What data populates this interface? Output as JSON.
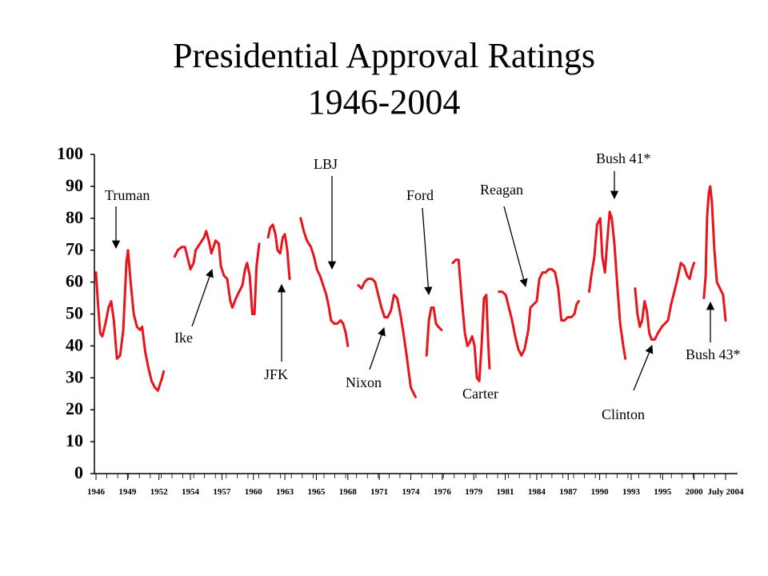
{
  "chart_data": {
    "type": "line",
    "title": "Presidential Approval Ratings",
    "subtitle": "1946-2004",
    "color": "#e8141c",
    "xlim": [
      1946,
      2004.5
    ],
    "xticks": [
      1946,
      1949,
      1952,
      1954,
      1957,
      1960,
      1963,
      1965,
      1968,
      1971,
      1974,
      1976,
      1979,
      1981,
      1984,
      1987,
      1990,
      1993,
      1995,
      2000,
      {
        "value": 2004.5,
        "label": "July 2004"
      }
    ],
    "ylim": [
      0,
      100
    ],
    "yticks": [
      0,
      10,
      20,
      30,
      40,
      50,
      60,
      70,
      80,
      90,
      100
    ],
    "x": [
      1946.0,
      1946.15,
      1946.4,
      1946.6,
      1946.9,
      1947.2,
      1947.45,
      1947.7,
      1948.0,
      1948.3,
      1948.6,
      1948.9,
      1949.05,
      1949.3,
      1949.6,
      1949.9,
      1950.2,
      1950.4,
      1950.7,
      1951.0,
      1951.3,
      1951.6,
      1951.9,
      1952.2,
      1952.3,
      null,
      1953.0,
      1953.2,
      1953.45,
      1953.65,
      1953.85,
      1954.0,
      1954.3,
      1954.5,
      1954.9,
      1955.3,
      1955.5,
      1955.75,
      1956.0,
      1956.1,
      1956.4,
      1956.7,
      1956.9,
      1957.2,
      1957.5,
      1957.8,
      1958.0,
      1958.35,
      1958.65,
      1958.95,
      1959.2,
      1959.4,
      1959.65,
      1959.9,
      1960.1,
      1960.3,
      1960.55,
      null,
      1961.4,
      1961.6,
      1961.85,
      1962.1,
      1962.3,
      1962.55,
      1962.8,
      1963.0,
      1963.15,
      1963.3,
      null,
      1964.0,
      1964.2,
      1964.4,
      1964.65,
      1964.85,
      1965.05,
      1965.35,
      1965.65,
      1965.95,
      1966.2,
      1966.4,
      1966.7,
      1967.0,
      1967.3,
      1967.55,
      1967.8,
      1968.0,
      null,
      1969.0,
      1969.3,
      1969.6,
      1969.9,
      1970.3,
      1970.6,
      1970.9,
      1971.2,
      1971.5,
      1971.8,
      1972.1,
      1972.4,
      1972.7,
      1973.0,
      1973.3,
      1973.6,
      1974.0,
      1974.2,
      1974.3,
      null,
      1975.0,
      1975.15,
      1975.3,
      1975.45,
      1975.6,
      1975.75,
      1975.95,
      null,
      1977.0,
      1977.3,
      1977.55,
      1977.85,
      1978.15,
      1978.4,
      1978.6,
      1978.85,
      1979.05,
      1979.2,
      1979.35,
      1979.5,
      1979.65,
      1979.8,
      1979.9,
      1980.0,
      null,
      1980.6,
      1980.8,
      1981.05,
      1981.35,
      1981.65,
      1981.95,
      1982.25,
      1982.55,
      1982.85,
      1983.2,
      1983.4,
      1983.7,
      1984.0,
      1984.25,
      1984.55,
      1984.85,
      1985.15,
      1985.45,
      1985.75,
      1986.05,
      1986.35,
      1986.65,
      1986.95,
      1987.3,
      1987.6,
      1987.8,
      1988.0,
      null,
      1989.0,
      1989.2,
      1989.5,
      1989.75,
      1990.05,
      1990.25,
      1990.5,
      1990.7,
      1990.95,
      1991.15,
      1991.4,
      1991.7,
      1991.95,
      1992.25,
      1992.45,
      null,
      1993.25,
      1993.4,
      1993.55,
      1993.7,
      1993.85,
      1994.0,
      1994.15,
      1994.3,
      1994.5,
      1994.7,
      1994.95,
      1995.35,
      1995.85,
      1996.35,
      1996.85,
      1997.35,
      1997.9,
      1998.4,
      1998.9,
      1999.3,
      1999.65,
      2000.0,
      null,
      2001.4,
      2001.65,
      2001.85,
      2002.1,
      2002.3,
      2002.55,
      2002.9,
      2003.25,
      2003.7,
      2004.15,
      2004.5
    ],
    "values": [
      63,
      55,
      44,
      43,
      47,
      52,
      54,
      48,
      36,
      37,
      45,
      66,
      70,
      60,
      50,
      46,
      45,
      46,
      38,
      33,
      29,
      27,
      26,
      30,
      32,
      null,
      68,
      70,
      71,
      71,
      67,
      64,
      66,
      70,
      72,
      74,
      76,
      73,
      69,
      70,
      73,
      72,
      65,
      62,
      61,
      54,
      52,
      55,
      57,
      59,
      64,
      66,
      62,
      50,
      50,
      65,
      72,
      null,
      74,
      77,
      78,
      75,
      70,
      69,
      74,
      75,
      70,
      61,
      null,
      80,
      76,
      73,
      71,
      68,
      64,
      62,
      59,
      56,
      52,
      48,
      47,
      47,
      48,
      47,
      44,
      40,
      null,
      59,
      58,
      60,
      61,
      61,
      60,
      56,
      52,
      49,
      49,
      51,
      56,
      55,
      50,
      44,
      37,
      27,
      25,
      24,
      null,
      37,
      48,
      52,
      52,
      47,
      46,
      45,
      null,
      66,
      67,
      67,
      55,
      44,
      40,
      41,
      43,
      40,
      30,
      29,
      40,
      55,
      56,
      43,
      33,
      null,
      57,
      57,
      56,
      52,
      48,
      43,
      39,
      37,
      39,
      45,
      52,
      53,
      54,
      61,
      63,
      63,
      64,
      64,
      63,
      58,
      48,
      48,
      49,
      49,
      50,
      53,
      54,
      null,
      57,
      62,
      68,
      78,
      80,
      68,
      63,
      72,
      82,
      80,
      72,
      58,
      47,
      40,
      36,
      null,
      58,
      50,
      46,
      48,
      54,
      51,
      44,
      42,
      42,
      44,
      46,
      47,
      48,
      53,
      57,
      61,
      66,
      65,
      62,
      61,
      64,
      66,
      null,
      55,
      62,
      80,
      88,
      90,
      85,
      70,
      60,
      58,
      56,
      48
    ],
    "annotations": [
      "Truman",
      "Ike",
      "JFK",
      "LBJ",
      "Nixon",
      "Ford",
      "Carter",
      "Reagan",
      "Bush 41*",
      "Clinton",
      "Bush 43*"
    ]
  }
}
